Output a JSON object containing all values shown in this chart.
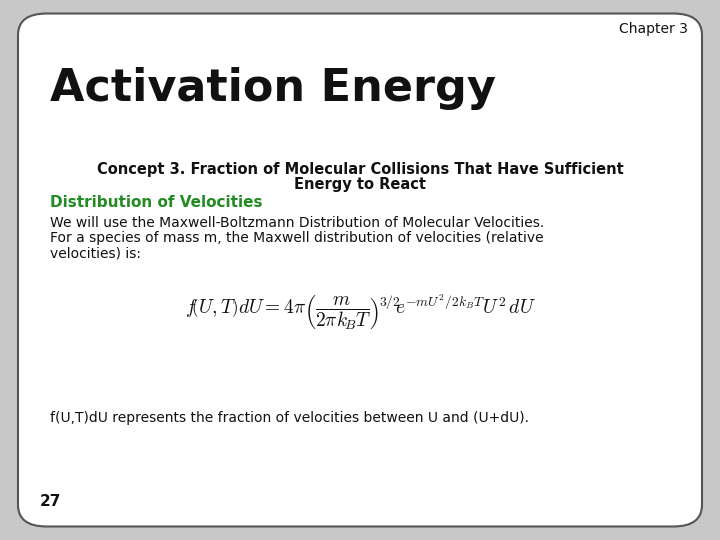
{
  "background_color": "#c8c8c8",
  "slide_background": "#ffffff",
  "chapter_text": "Chapter 3",
  "title_text": "Activation Energy",
  "concept_line1": "Concept 3. Fraction of Molecular Collisions That Have Sufficient",
  "concept_line2": "Energy to React",
  "green_heading": "Distribution of Velocities",
  "body_text_line1": "We will use the Maxwell-Boltzmann Distribution of Molecular Velocities.",
  "body_text_line2": "For a species of mass m, the Maxwell distribution of velocities (relative",
  "body_text_line3": "velocities) is:",
  "caption_text": "f(U,T)dU represents the fraction of velocities between U and (U+dU).",
  "page_number": "27",
  "title_color": "#111111",
  "concept_color": "#111111",
  "green_color": "#228B22",
  "body_color": "#111111",
  "chapter_color": "#111111",
  "border_color": "#555555",
  "title_fontsize": 32,
  "chapter_fontsize": 10,
  "concept_fontsize": 10.5,
  "green_fontsize": 11,
  "body_fontsize": 10,
  "caption_fontsize": 10,
  "page_fontsize": 11,
  "eq_fontsize": 14
}
